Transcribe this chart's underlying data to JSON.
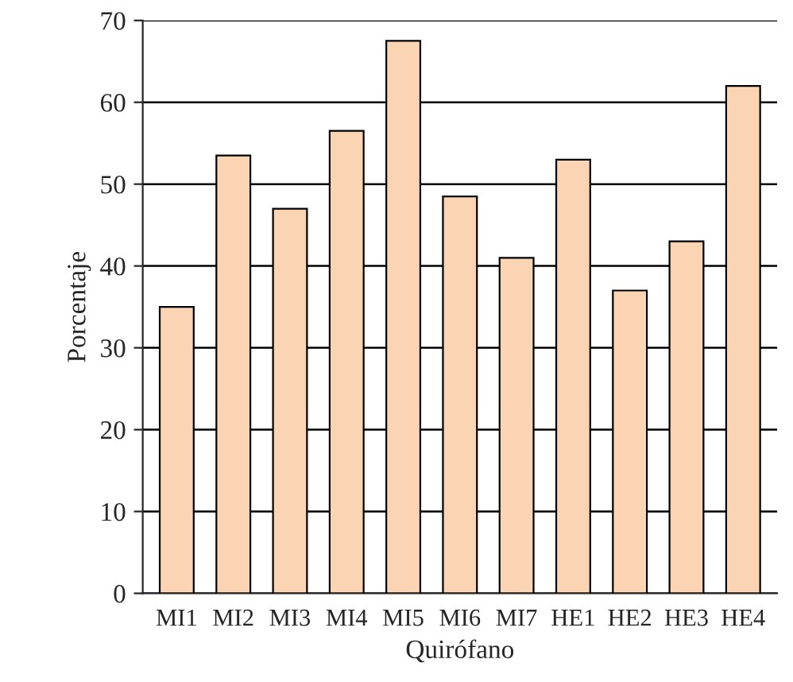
{
  "chart_data": {
    "type": "bar",
    "xlabel": "Quirófano",
    "ylabel": "Porcentaje",
    "categories": [
      "MI1",
      "MI2",
      "MI3",
      "MI4",
      "MI5",
      "MI6",
      "MI7",
      "HE1",
      "HE2",
      "HE3",
      "HE4"
    ],
    "values": [
      35,
      53.5,
      47,
      56.5,
      67.5,
      48.5,
      41,
      53,
      37,
      43,
      62
    ],
    "color": "#fbd5b3",
    "ylim": [
      0,
      70
    ],
    "yticks": [
      0,
      10,
      20,
      30,
      40,
      50,
      60,
      70
    ],
    "grid": "y"
  }
}
